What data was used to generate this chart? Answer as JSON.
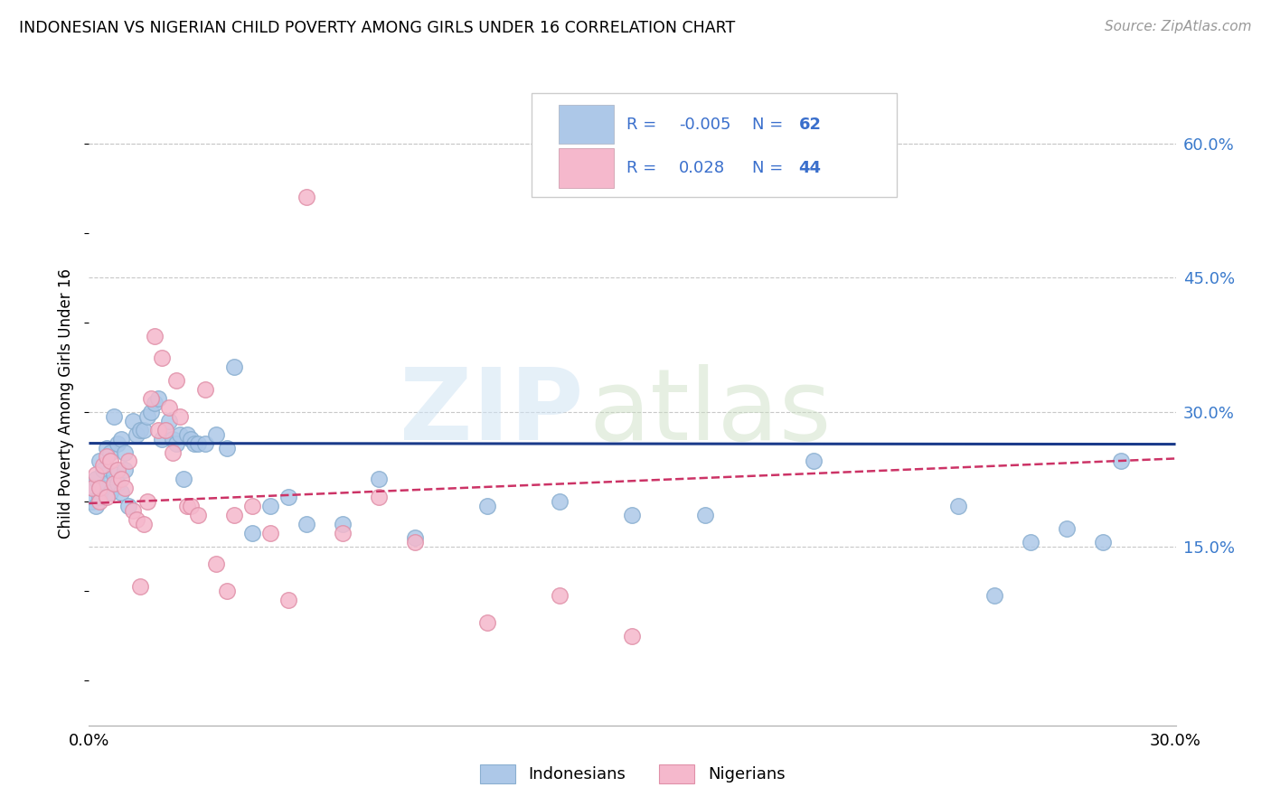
{
  "title": "INDONESIAN VS NIGERIAN CHILD POVERTY AMONG GIRLS UNDER 16 CORRELATION CHART",
  "source": "Source: ZipAtlas.com",
  "ylabel": "Child Poverty Among Girls Under 16",
  "ytick_values": [
    0.15,
    0.3,
    0.45,
    0.6
  ],
  "ytick_labels": [
    "15.0%",
    "30.0%",
    "45.0%",
    "60.0%"
  ],
  "xlim": [
    0.0,
    0.3
  ],
  "ylim": [
    -0.05,
    0.67
  ],
  "color_indonesian_fill": "#adc8e8",
  "color_indonesian_edge": "#8aafd0",
  "color_nigerian_fill": "#f5b8cc",
  "color_nigerian_edge": "#e090a8",
  "color_line_indonesian": "#1a3a8a",
  "color_line_nigerian": "#cc3366",
  "legend_text_color": "#3a6fcc",
  "r_indo": -0.005,
  "r_nig": 0.028,
  "n_indo": 62,
  "n_nig": 44,
  "indonesian_x": [
    0.001,
    0.001,
    0.002,
    0.002,
    0.003,
    0.003,
    0.004,
    0.004,
    0.005,
    0.005,
    0.006,
    0.006,
    0.007,
    0.007,
    0.008,
    0.008,
    0.009,
    0.009,
    0.01,
    0.01,
    0.011,
    0.012,
    0.013,
    0.014,
    0.015,
    0.016,
    0.017,
    0.018,
    0.019,
    0.02,
    0.021,
    0.022,
    0.023,
    0.024,
    0.025,
    0.026,
    0.027,
    0.028,
    0.029,
    0.03,
    0.032,
    0.035,
    0.038,
    0.04,
    0.045,
    0.05,
    0.055,
    0.06,
    0.07,
    0.08,
    0.09,
    0.11,
    0.13,
    0.15,
    0.17,
    0.2,
    0.24,
    0.25,
    0.26,
    0.27,
    0.28,
    0.285
  ],
  "indonesian_y": [
    0.215,
    0.2,
    0.225,
    0.195,
    0.245,
    0.205,
    0.215,
    0.235,
    0.26,
    0.22,
    0.255,
    0.21,
    0.295,
    0.23,
    0.265,
    0.22,
    0.27,
    0.21,
    0.235,
    0.255,
    0.195,
    0.29,
    0.275,
    0.28,
    0.28,
    0.295,
    0.3,
    0.31,
    0.315,
    0.27,
    0.28,
    0.29,
    0.27,
    0.265,
    0.275,
    0.225,
    0.275,
    0.27,
    0.265,
    0.265,
    0.265,
    0.275,
    0.26,
    0.35,
    0.165,
    0.195,
    0.205,
    0.175,
    0.175,
    0.225,
    0.16,
    0.195,
    0.2,
    0.185,
    0.185,
    0.245,
    0.195,
    0.095,
    0.155,
    0.17,
    0.155,
    0.245
  ],
  "nigerian_x": [
    0.001,
    0.002,
    0.003,
    0.003,
    0.004,
    0.005,
    0.005,
    0.006,
    0.007,
    0.008,
    0.009,
    0.01,
    0.011,
    0.012,
    0.013,
    0.014,
    0.015,
    0.016,
    0.017,
    0.018,
    0.019,
    0.02,
    0.021,
    0.022,
    0.023,
    0.024,
    0.025,
    0.027,
    0.028,
    0.03,
    0.032,
    0.035,
    0.038,
    0.04,
    0.045,
    0.05,
    0.055,
    0.06,
    0.07,
    0.08,
    0.09,
    0.11,
    0.13,
    0.15
  ],
  "nigerian_y": [
    0.215,
    0.23,
    0.2,
    0.215,
    0.24,
    0.205,
    0.25,
    0.245,
    0.22,
    0.235,
    0.225,
    0.215,
    0.245,
    0.19,
    0.18,
    0.105,
    0.175,
    0.2,
    0.315,
    0.385,
    0.28,
    0.36,
    0.28,
    0.305,
    0.255,
    0.335,
    0.295,
    0.195,
    0.195,
    0.185,
    0.325,
    0.13,
    0.1,
    0.185,
    0.195,
    0.165,
    0.09,
    0.54,
    0.165,
    0.205,
    0.155,
    0.065,
    0.095,
    0.05
  ],
  "line_indo_y0": 0.265,
  "line_indo_y1": 0.264,
  "line_nig_y0": 0.198,
  "line_nig_y1": 0.248
}
